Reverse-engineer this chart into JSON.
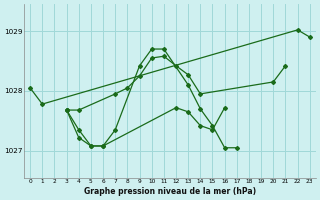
{
  "title": "Graphe pression niveau de la mer (hPa)",
  "background_color": "#cff0f0",
  "grid_color": "#a0d8d8",
  "line_color": "#1a6b1a",
  "ylim": [
    1026.55,
    1029.45
  ],
  "xlim": [
    -0.5,
    23.5
  ],
  "yticks": [
    1027,
    1028,
    1029
  ],
  "xticks": [
    0,
    1,
    2,
    3,
    4,
    5,
    6,
    7,
    8,
    9,
    10,
    11,
    12,
    13,
    14,
    15,
    16,
    17,
    18,
    19,
    20,
    21,
    22,
    23
  ],
  "series": [
    [
      1028.05,
      1027.78,
      null,
      null,
      null,
      null,
      null,
      null,
      null,
      null,
      null,
      null,
      null,
      null,
      null,
      null,
      null,
      null,
      null,
      null,
      null,
      null,
      1029.02,
      1028.9
    ],
    [
      null,
      null,
      null,
      1027.68,
      1027.68,
      null,
      null,
      1027.95,
      1028.05,
      1028.25,
      1028.55,
      1028.58,
      1028.42,
      1028.27,
      1027.95,
      null,
      null,
      null,
      null,
      null,
      1028.15,
      1028.42,
      null,
      null
    ],
    [
      null,
      null,
      null,
      1027.68,
      1027.35,
      1027.08,
      1027.08,
      1027.35,
      null,
      1028.42,
      1028.7,
      1028.7,
      null,
      1028.1,
      1027.7,
      1027.42,
      1027.05,
      1027.05,
      null,
      null,
      null,
      null,
      null,
      null
    ],
    [
      null,
      null,
      null,
      1027.68,
      1027.22,
      1027.08,
      1027.08,
      null,
      null,
      null,
      null,
      null,
      1027.72,
      1027.65,
      1027.42,
      1027.35,
      1027.72,
      null,
      null,
      null,
      null,
      null,
      null,
      null
    ]
  ],
  "series2": [
    {
      "x": [
        0,
        1,
        22,
        23
      ],
      "y": [
        1028.05,
        1027.78,
        1029.02,
        1028.9
      ]
    },
    {
      "x": [
        3,
        4,
        7,
        8,
        9,
        10,
        11,
        12,
        13,
        14,
        20,
        21
      ],
      "y": [
        1027.68,
        1027.68,
        1027.95,
        1028.05,
        1028.25,
        1028.55,
        1028.58,
        1028.42,
        1028.27,
        1027.95,
        1028.15,
        1028.42
      ]
    },
    {
      "x": [
        3,
        4,
        5,
        6,
        7,
        9,
        10,
        11,
        13,
        14,
        15,
        16,
        17
      ],
      "y": [
        1027.68,
        1027.35,
        1027.08,
        1027.08,
        1027.35,
        1028.42,
        1028.7,
        1028.7,
        1028.1,
        1027.7,
        1027.42,
        1027.05,
        1027.05
      ]
    },
    {
      "x": [
        3,
        4,
        5,
        6,
        12,
        13,
        14,
        15,
        16
      ],
      "y": [
        1027.68,
        1027.22,
        1027.08,
        1027.08,
        1027.72,
        1027.65,
        1027.42,
        1027.35,
        1027.72
      ]
    }
  ]
}
